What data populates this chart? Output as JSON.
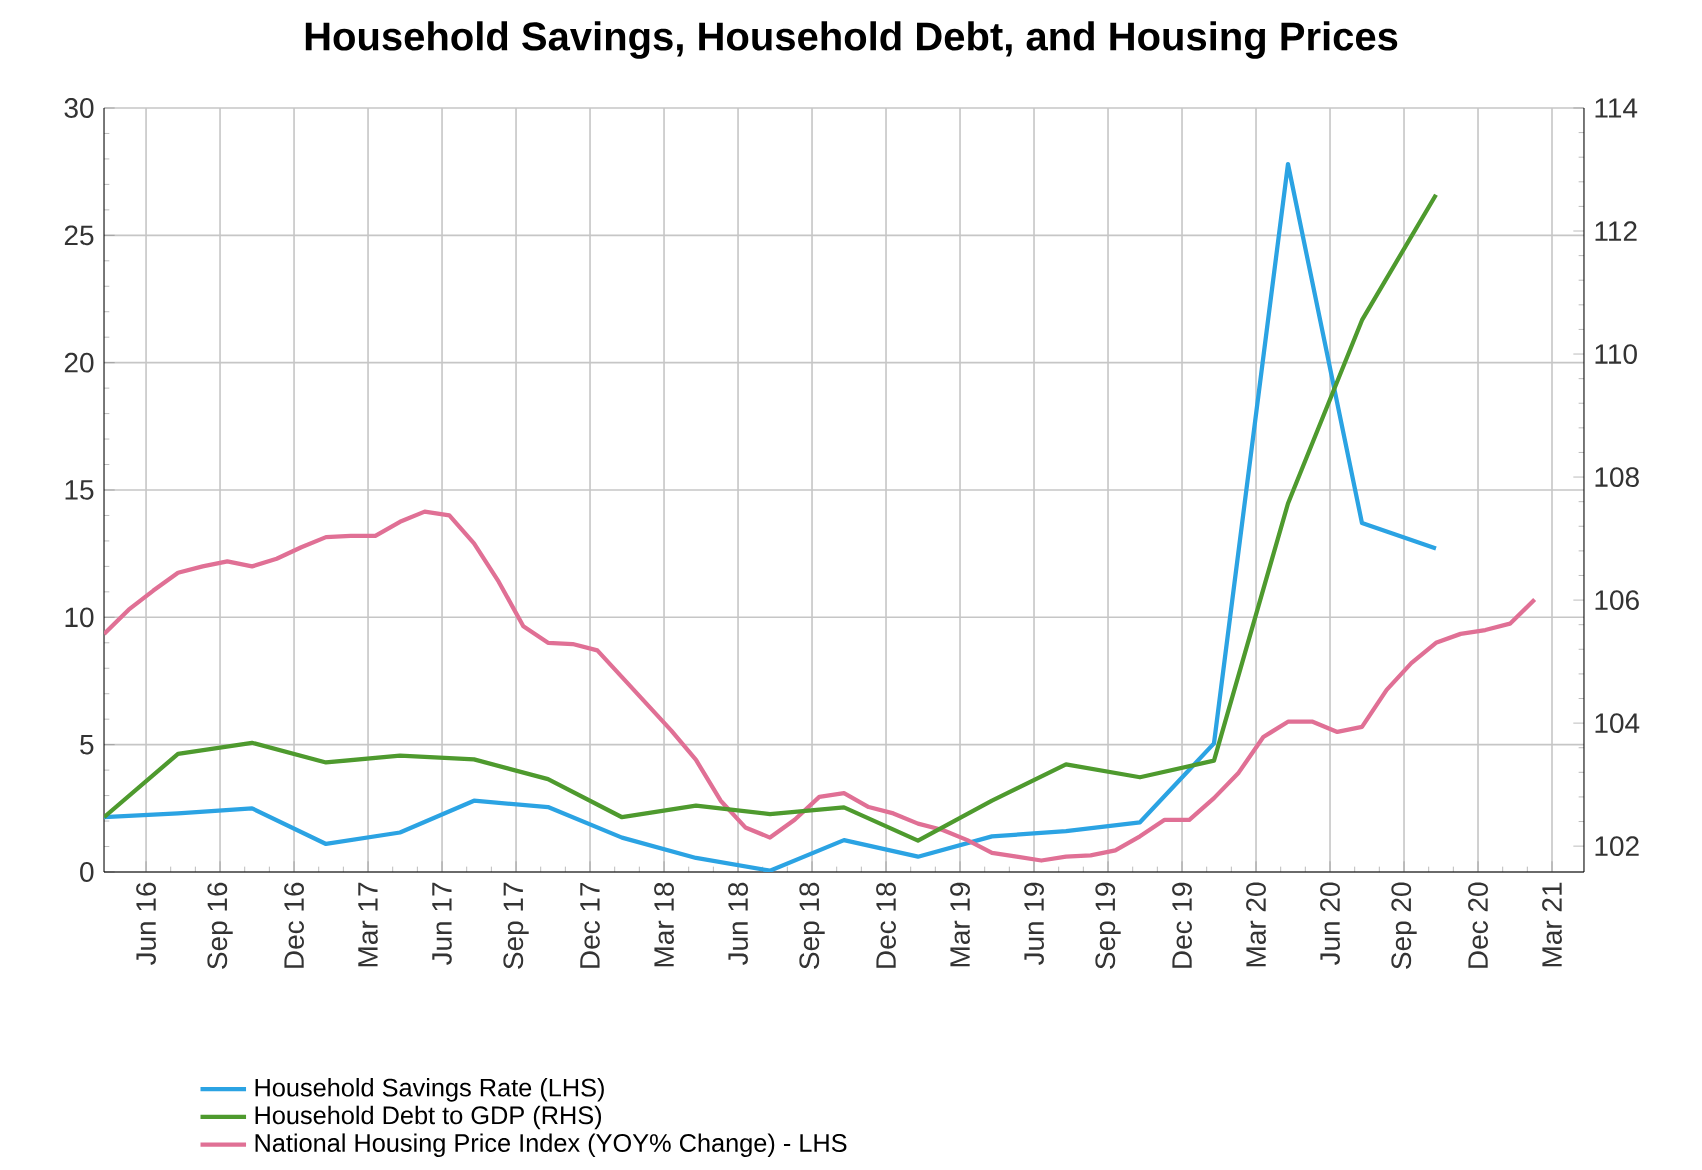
{
  "chart_data": {
    "type": "line",
    "title": "Household Savings, Household Debt, and Housing Prices",
    "xlim": [
      "2016-04-10",
      "2021-04-10"
    ],
    "xticks": [
      {
        "value": "2016-06-01",
        "label": "Jun 16"
      },
      {
        "value": "2016-09-01",
        "label": "Sep 16"
      },
      {
        "value": "2016-12-01",
        "label": "Dec 16"
      },
      {
        "value": "2017-03-01",
        "label": "Mar 17"
      },
      {
        "value": "2017-06-01",
        "label": "Jun 17"
      },
      {
        "value": "2017-09-01",
        "label": "Sep 17"
      },
      {
        "value": "2017-12-01",
        "label": "Dec 17"
      },
      {
        "value": "2018-03-01",
        "label": "Mar 18"
      },
      {
        "value": "2018-06-01",
        "label": "Jun 18"
      },
      {
        "value": "2018-09-01",
        "label": "Sep 18"
      },
      {
        "value": "2018-12-01",
        "label": "Dec 18"
      },
      {
        "value": "2019-03-01",
        "label": "Mar 19"
      },
      {
        "value": "2019-06-01",
        "label": "Jun 19"
      },
      {
        "value": "2019-09-01",
        "label": "Sep 19"
      },
      {
        "value": "2019-12-01",
        "label": "Dec 19"
      },
      {
        "value": "2020-03-01",
        "label": "Mar 20"
      },
      {
        "value": "2020-06-01",
        "label": "Jun 20"
      },
      {
        "value": "2020-09-01",
        "label": "Sep 20"
      },
      {
        "value": "2020-12-01",
        "label": "Dec 20"
      },
      {
        "value": "2021-03-01",
        "label": "Mar 21"
      }
    ],
    "ylim": [
      0,
      30
    ],
    "yticks": [
      0,
      5,
      10,
      15,
      20,
      25,
      30
    ],
    "y2lim": [
      101.58,
      114
    ],
    "y2ticks": [
      102,
      104,
      106,
      108,
      110,
      112,
      114
    ],
    "grid": true,
    "legend": "bottom left",
    "marker": "none",
    "line_style": "solid",
    "series": [
      {
        "name": "Household Savings Rate (LHS)",
        "color": "#2ba3e3",
        "x": [
          "2016-04-10",
          "2016-07-10",
          "2016-10-10",
          "2017-01-10",
          "2017-04-10",
          "2017-07-10",
          "2017-10-10",
          "2018-01-10",
          "2018-04-10",
          "2018-07-10",
          "2018-10-10",
          "2019-01-10",
          "2019-04-10",
          "2019-07-10",
          "2019-10-10",
          "2020-01-10",
          "2020-04-10",
          "2020-07-10",
          "2020-10-10"
        ],
        "values": [
          2.15,
          2.3,
          2.5,
          1.1,
          1.55,
          2.8,
          2.55,
          1.35,
          0.55,
          0.05,
          1.25,
          0.6,
          1.4,
          1.6,
          1.95,
          5.05,
          27.8,
          13.7,
          12.7
        ]
      },
      {
        "name": "Household Debt to GDP (RHS)",
        "color": "#4e9a2e",
        "axis": "y2",
        "x": [
          "2016-04-10",
          "2016-07-10",
          "2016-10-10",
          "2017-01-10",
          "2017-04-10",
          "2017-07-10",
          "2017-10-10",
          "2018-01-10",
          "2018-04-10",
          "2018-07-10",
          "2018-10-10",
          "2019-01-10",
          "2019-04-10",
          "2019-07-10",
          "2019-10-10",
          "2020-01-10",
          "2020-04-10",
          "2020-07-10",
          "2020-10-10"
        ],
        "values": [
          102.47,
          103.5,
          103.68,
          103.36,
          103.47,
          103.41,
          103.09,
          102.47,
          102.66,
          102.52,
          102.63,
          102.09,
          102.74,
          103.33,
          103.12,
          103.39,
          107.57,
          110.55,
          112.59
        ]
      },
      {
        "name": "National Housing Price Index (YOY% Change) - LHS",
        "color": "#e07095",
        "x": [
          "2016-04-10",
          "2016-05-10",
          "2016-06-10",
          "2016-07-10",
          "2016-08-10",
          "2016-09-10",
          "2016-10-10",
          "2016-11-10",
          "2016-12-10",
          "2017-01-10",
          "2017-02-10",
          "2017-03-10",
          "2017-04-10",
          "2017-05-10",
          "2017-06-10",
          "2017-07-10",
          "2017-08-10",
          "2017-09-10",
          "2017-10-10",
          "2017-11-10",
          "2017-12-10",
          "2018-01-10",
          "2018-02-10",
          "2018-03-10",
          "2018-04-10",
          "2018-05-10",
          "2018-06-10",
          "2018-07-10",
          "2018-08-10",
          "2018-09-10",
          "2018-10-10",
          "2018-11-10",
          "2018-12-10",
          "2019-01-10",
          "2019-02-10",
          "2019-03-10",
          "2019-04-10",
          "2019-05-10",
          "2019-06-10",
          "2019-07-10",
          "2019-08-10",
          "2019-09-10",
          "2019-10-10",
          "2019-11-10",
          "2019-12-10",
          "2020-01-10",
          "2020-02-10",
          "2020-03-10",
          "2020-04-10",
          "2020-05-10",
          "2020-06-10",
          "2020-07-10",
          "2020-08-10",
          "2020-09-10",
          "2020-10-10",
          "2020-11-10",
          "2020-12-10",
          "2021-01-10",
          "2021-02-10"
        ],
        "values": [
          9.35,
          10.3,
          11.05,
          11.75,
          12.0,
          12.2,
          12.0,
          12.3,
          12.75,
          13.15,
          13.2,
          13.2,
          13.75,
          14.15,
          14.0,
          12.9,
          11.4,
          9.65,
          9.0,
          8.95,
          8.7,
          7.65,
          6.6,
          5.55,
          4.4,
          2.8,
          1.75,
          1.35,
          2.05,
          2.95,
          3.1,
          2.55,
          2.3,
          1.9,
          1.65,
          1.25,
          0.75,
          0.6,
          0.45,
          0.6,
          0.65,
          0.85,
          1.4,
          2.05,
          2.05,
          2.9,
          3.9,
          5.3,
          5.9,
          5.9,
          5.5,
          5.7,
          7.15,
          8.2,
          9.0,
          9.35,
          9.5,
          9.75,
          10.7
        ]
      }
    ]
  }
}
